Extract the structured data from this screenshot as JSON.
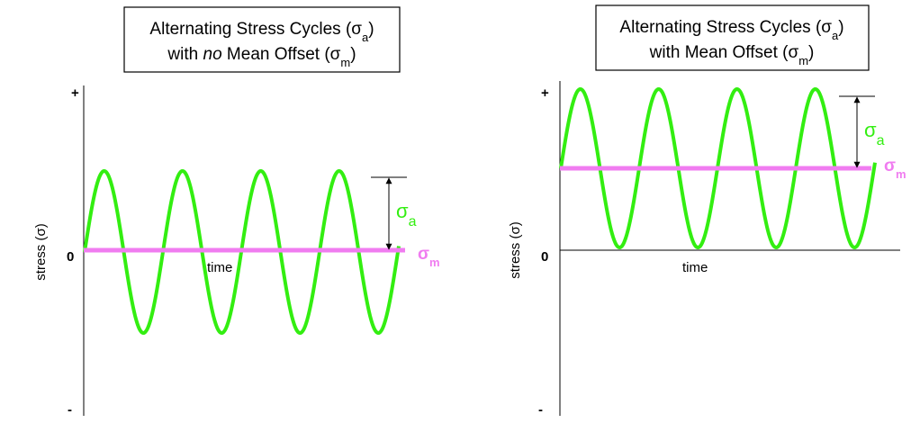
{
  "panels": [
    {
      "title": {
        "line1": [
          "Alternating Stress Cycles (σ",
          "a",
          ")"
        ],
        "line2": [
          "with ",
          "no",
          " Mean Offset (σ",
          "m",
          ")"
        ]
      },
      "y_plus": "+",
      "y_zero": "0",
      "y_minus": "-",
      "y_label": "stress (σ)",
      "x_label": "time",
      "amplitude_symbol": "σ",
      "amplitude_sub": "a",
      "mean_symbol": "σ",
      "mean_sub": "m"
    },
    {
      "title": {
        "line1": [
          "Alternating Stress Cycles (σ",
          "a",
          ")"
        ],
        "line2": [
          "with Mean Offset (σ",
          "m",
          ")"
        ]
      },
      "y_plus": "+",
      "y_zero": "0",
      "y_minus": "-",
      "y_label": "stress (σ)",
      "x_label": "time",
      "amplitude_symbol": "σ",
      "amplitude_sub": "a",
      "mean_symbol": "σ",
      "mean_sub": "m"
    }
  ]
}
